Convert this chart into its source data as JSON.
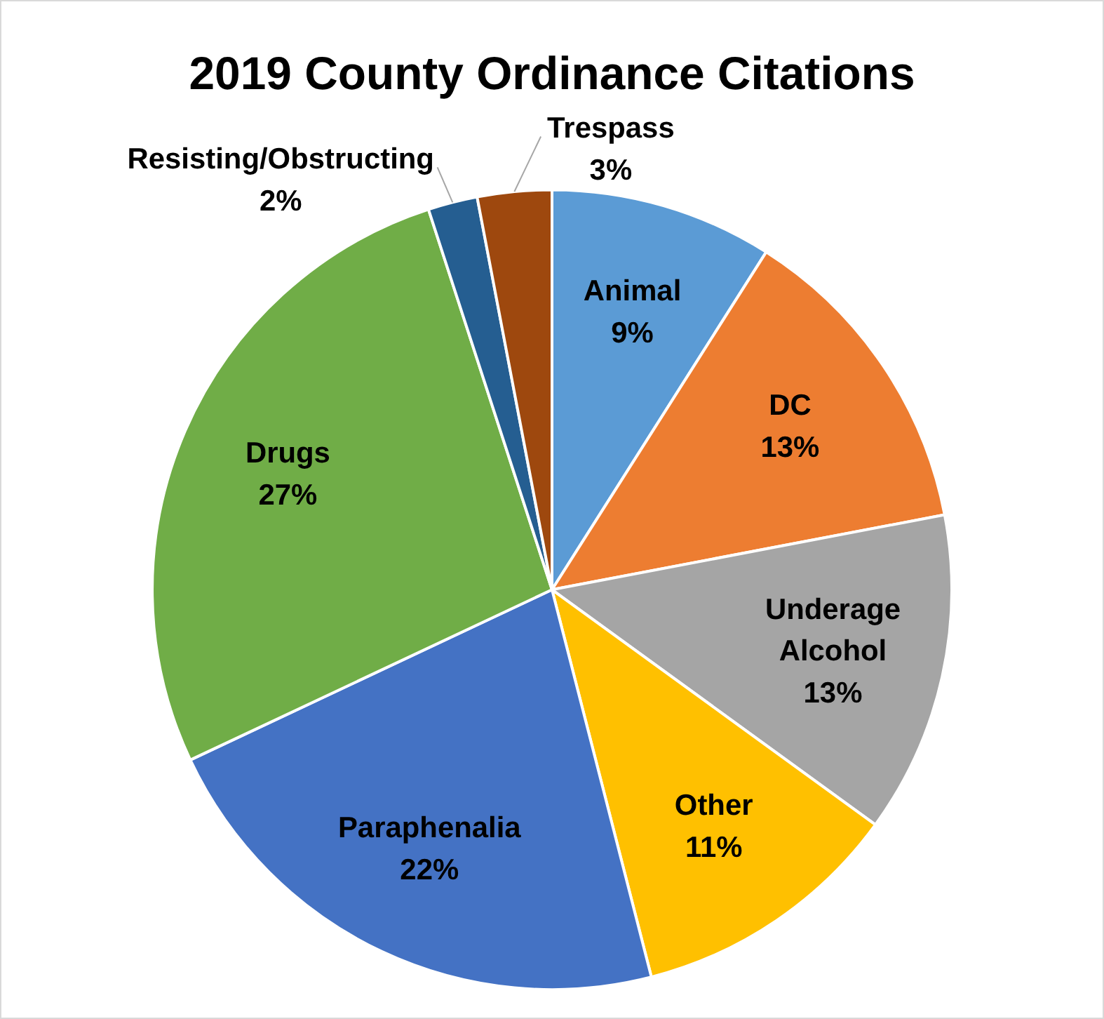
{
  "chart_data": {
    "type": "pie",
    "title": "2019 County Ordinance Citations",
    "categories": [
      "Animal",
      "DC",
      "Underage Alcohol",
      "Other",
      "Paraphenalia",
      "Drugs",
      "Resisting/Obstructing",
      "Trespass"
    ],
    "values": [
      9,
      13,
      13,
      11,
      22,
      27,
      2,
      3
    ],
    "value_labels": [
      "9%",
      "13%",
      "13%",
      "11%",
      "22%",
      "27%",
      "2%",
      "3%"
    ],
    "colors": [
      "#5b9bd5",
      "#ed7d31",
      "#a5a5a5",
      "#ffc000",
      "#4472c4",
      "#70ad47",
      "#255e91",
      "#9e480e"
    ],
    "legend": false
  }
}
